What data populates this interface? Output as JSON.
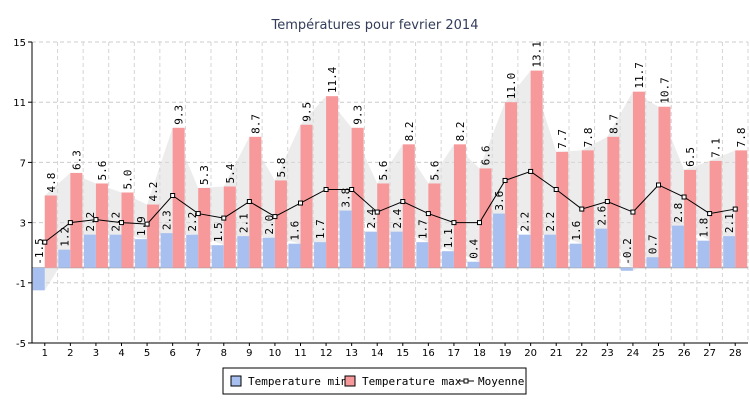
{
  "chart_data": {
    "type": "bar",
    "title": "Températures pour fevrier 2014",
    "categories": [
      "1",
      "2",
      "3",
      "4",
      "5",
      "6",
      "7",
      "8",
      "9",
      "10",
      "11",
      "12",
      "13",
      "14",
      "15",
      "16",
      "17",
      "18",
      "19",
      "20",
      "21",
      "22",
      "23",
      "24",
      "25",
      "26",
      "27",
      "28"
    ],
    "series": [
      {
        "name": "Temperature min",
        "type": "bar",
        "color": "#a7c0ef",
        "values": [
          -1.5,
          1.2,
          2.2,
          2.2,
          1.9,
          2.3,
          2.2,
          1.5,
          2.1,
          2.0,
          1.6,
          1.7,
          3.8,
          2.4,
          2.4,
          1.7,
          1.1,
          0.4,
          3.6,
          2.2,
          2.2,
          1.6,
          2.6,
          -0.2,
          0.7,
          2.8,
          1.8,
          2.1
        ]
      },
      {
        "name": "Temperature max",
        "type": "bar",
        "color": "#f7999b",
        "values": [
          4.8,
          6.3,
          5.6,
          5.0,
          4.2,
          9.3,
          5.3,
          5.4,
          8.7,
          5.8,
          9.5,
          11.4,
          9.3,
          5.6,
          8.2,
          5.6,
          8.2,
          6.6,
          11.0,
          13.1,
          7.7,
          7.8,
          8.7,
          11.7,
          10.7,
          6.5,
          7.1,
          7.8
        ]
      },
      {
        "name": "Moyenne",
        "type": "line",
        "color": "#000000",
        "values": [
          1.7,
          3.0,
          3.2,
          3.0,
          2.9,
          4.8,
          3.6,
          3.3,
          4.4,
          3.4,
          4.3,
          5.2,
          5.2,
          3.7,
          4.4,
          3.6,
          3.0,
          3.0,
          5.8,
          6.4,
          5.2,
          3.9,
          4.4,
          3.7,
          5.5,
          4.7,
          3.6,
          3.9
        ]
      }
    ],
    "ylim": [
      -5,
      15
    ],
    "yticks": [
      "-5",
      "-1",
      "3",
      "7",
      "11",
      "15"
    ],
    "grid": true,
    "legend": "bottom-center",
    "fill_color": "#dcdcdc"
  }
}
